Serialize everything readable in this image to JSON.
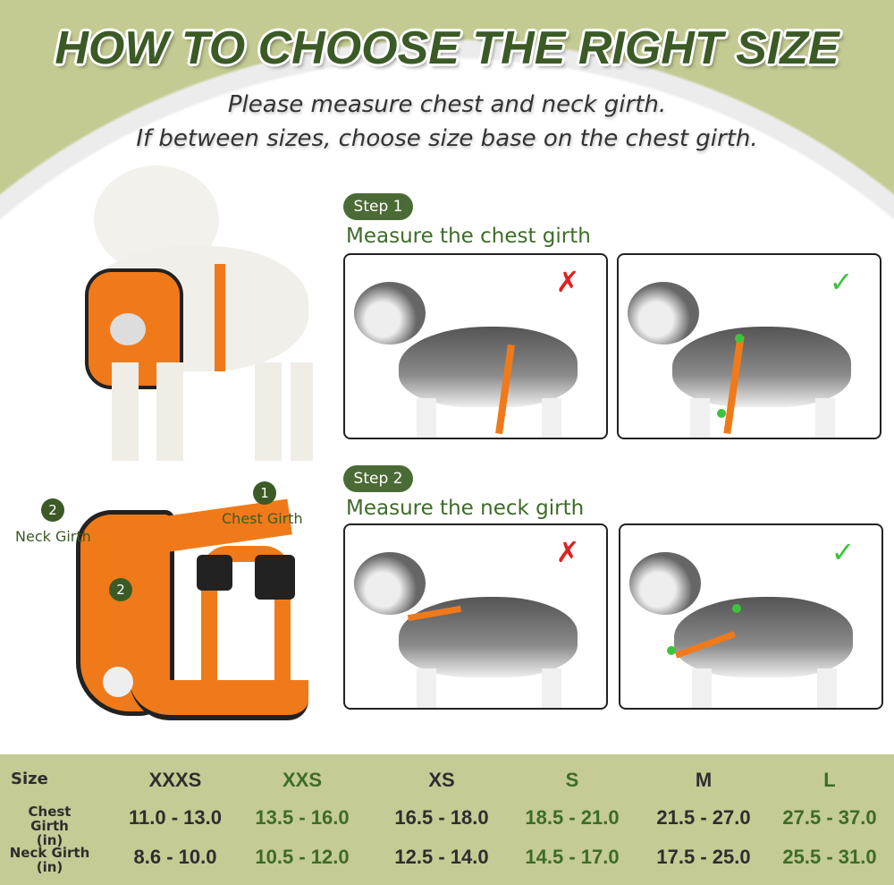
{
  "header": {
    "title": "HOW TO CHOOSE THE RIGHT SIZE",
    "line1": "Please measure chest and neck girth.",
    "line2": "If between sizes, choose size base on the chest girth."
  },
  "steps": [
    {
      "badge": "Step 1",
      "text": "Measure the chest girth"
    },
    {
      "badge": "Step 2",
      "text": "Measure the neck girth"
    }
  ],
  "harness_labels": {
    "chest": "Chest Girth",
    "chest_num": "1",
    "neck": "Neck Girth",
    "neck_num": "2"
  },
  "icons": {
    "wrong": "red-x-icon",
    "right": "green-check-icon"
  },
  "colors": {
    "accent_green": "#3b5a26",
    "table_bg": "#c4cb94",
    "harness_orange": "#f07a1a"
  },
  "table": {
    "row_labels": {
      "size": "Size",
      "chest": "Chest Girth",
      "chest_unit": "(in)",
      "neck": "Neck Girth",
      "neck_unit": "(in)"
    },
    "sizes": [
      "XXXS",
      "XXS",
      "XS",
      "S",
      "M",
      "L"
    ],
    "chest": [
      "11.0 - 13.0",
      "13.5 - 16.0",
      "16.5 - 18.0",
      "18.5 - 21.0",
      "21.5 - 27.0",
      "27.5 - 37.0"
    ],
    "neck": [
      "8.6 - 10.0",
      "10.5 - 12.0",
      "12.5 - 14.0",
      "14.5 - 17.0",
      "17.5 - 25.0",
      "25.5 - 31.0"
    ]
  }
}
